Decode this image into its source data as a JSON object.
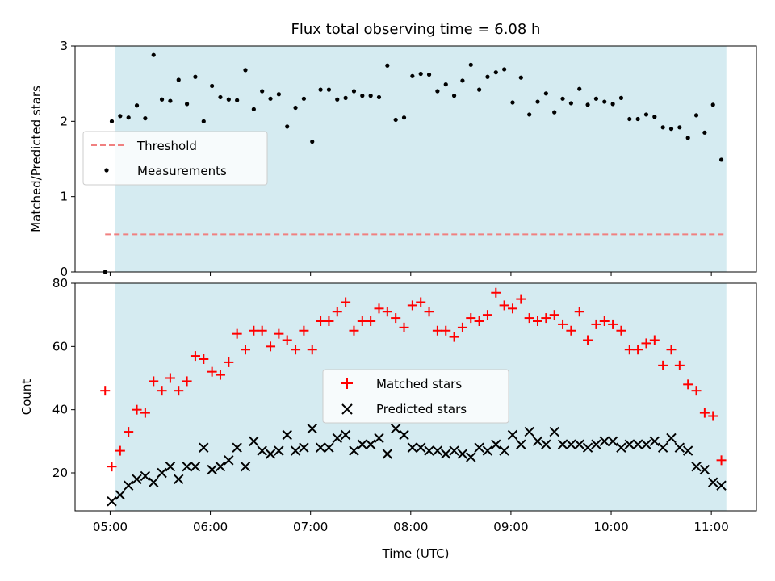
{
  "chart_data": [
    {
      "type": "scatter",
      "title": "Flux total observing time = 6.08 h",
      "ylabel": "Matched/Predicted stars",
      "xlabel": "",
      "ylim": [
        0,
        3
      ],
      "yticks": [
        "0",
        "1",
        "2",
        "3"
      ],
      "xlim_hours": [
        4.65,
        11.45
      ],
      "shaded_region_hours": [
        5.05,
        11.15
      ],
      "shaded_color": "#d5ebf1",
      "legend_position": "center-left",
      "threshold": {
        "name": "Threshold",
        "value": 0.5,
        "x_hours": [
          4.95,
          11.15
        ],
        "color": "#f08080"
      },
      "series": [
        {
          "name": "Measurements",
          "color": "#000000",
          "x": [
            "04:57",
            "05:01",
            "05:06",
            "05:11",
            "05:16",
            "05:21",
            "05:26",
            "05:31",
            "05:36",
            "05:41",
            "05:46",
            "05:51",
            "05:56",
            "06:01",
            "06:06",
            "06:11",
            "06:16",
            "06:21",
            "06:26",
            "06:31",
            "06:36",
            "06:41",
            "06:46",
            "06:51",
            "06:56",
            "07:01",
            "07:06",
            "07:11",
            "07:16",
            "07:21",
            "07:26",
            "07:31",
            "07:36",
            "07:41",
            "07:46",
            "07:51",
            "07:56",
            "08:01",
            "08:06",
            "08:11",
            "08:16",
            "08:21",
            "08:26",
            "08:31",
            "08:36",
            "08:41",
            "08:46",
            "08:51",
            "08:56",
            "09:01",
            "09:06",
            "09:11",
            "09:16",
            "09:21",
            "09:26",
            "09:31",
            "09:36",
            "09:41",
            "09:46",
            "09:51",
            "09:56",
            "10:01",
            "10:06",
            "10:11",
            "10:16",
            "10:21",
            "10:26",
            "10:31",
            "10:36",
            "10:41",
            "10:46",
            "10:51",
            "10:56",
            "11:01",
            "11:06"
          ],
          "values": [
            0.0,
            2.0,
            2.07,
            2.05,
            2.21,
            2.04,
            2.88,
            2.29,
            2.27,
            2.55,
            2.23,
            2.59,
            2.0,
            2.47,
            2.32,
            2.29,
            2.28,
            2.68,
            2.16,
            2.4,
            2.3,
            2.36,
            1.93,
            2.18,
            2.3,
            1.73,
            2.42,
            2.42,
            2.29,
            2.31,
            2.4,
            2.34,
            2.34,
            2.32,
            2.74,
            2.02,
            2.05,
            2.6,
            2.63,
            2.62,
            2.4,
            2.49,
            2.34,
            2.54,
            2.75,
            2.42,
            2.59,
            2.65,
            2.69,
            2.25,
            2.58,
            2.09,
            2.26,
            2.37,
            2.12,
            2.3,
            2.24,
            2.43,
            2.22,
            2.3,
            2.26,
            2.23,
            2.31,
            2.03,
            2.03,
            2.09,
            2.06,
            1.92,
            1.9,
            1.92,
            1.78,
            2.08,
            1.85,
            2.22,
            1.49
          ]
        }
      ]
    },
    {
      "type": "scatter",
      "title": "",
      "ylabel": "Count",
      "xlabel": "Time (UTC)",
      "ylim": [
        8,
        80
      ],
      "yticks": [
        "20",
        "40",
        "60",
        "80"
      ],
      "xlim_hours": [
        4.65,
        11.45
      ],
      "xticks": [
        "05:00",
        "06:00",
        "07:00",
        "08:00",
        "09:00",
        "10:00",
        "11:00"
      ],
      "shaded_region_hours": [
        5.05,
        11.15
      ],
      "shaded_color": "#d5ebf1",
      "legend_position": "center",
      "series": [
        {
          "name": "Matched stars",
          "marker": "plus",
          "color": "#ff0000",
          "x": [
            "04:57",
            "05:01",
            "05:06",
            "05:11",
            "05:16",
            "05:21",
            "05:26",
            "05:31",
            "05:36",
            "05:41",
            "05:46",
            "05:51",
            "05:56",
            "06:01",
            "06:06",
            "06:11",
            "06:16",
            "06:21",
            "06:26",
            "06:31",
            "06:36",
            "06:41",
            "06:46",
            "06:51",
            "06:56",
            "07:01",
            "07:06",
            "07:11",
            "07:16",
            "07:21",
            "07:26",
            "07:31",
            "07:36",
            "07:41",
            "07:46",
            "07:51",
            "07:56",
            "08:01",
            "08:06",
            "08:11",
            "08:16",
            "08:21",
            "08:26",
            "08:31",
            "08:36",
            "08:41",
            "08:46",
            "08:51",
            "08:56",
            "09:01",
            "09:06",
            "09:11",
            "09:16",
            "09:21",
            "09:26",
            "09:31",
            "09:36",
            "09:41",
            "09:46",
            "09:51",
            "09:56",
            "10:01",
            "10:06",
            "10:11",
            "10:16",
            "10:21",
            "10:26",
            "10:31",
            "10:36",
            "10:41",
            "10:46",
            "10:51",
            "10:56",
            "11:01",
            "11:06"
          ],
          "values": [
            46,
            22,
            27,
            33,
            40,
            39,
            49,
            46,
            50,
            46,
            49,
            57,
            56,
            52,
            51,
            55,
            64,
            59,
            65,
            65,
            60,
            64,
            62,
            59,
            65,
            59,
            68,
            68,
            71,
            74,
            65,
            68,
            68,
            72,
            71,
            69,
            66,
            73,
            74,
            71,
            65,
            65,
            63,
            66,
            69,
            68,
            70,
            77,
            73,
            72,
            75,
            69,
            68,
            69,
            70,
            67,
            65,
            71,
            62,
            67,
            68,
            67,
            65,
            59,
            59,
            61,
            62,
            54,
            59,
            54,
            48,
            46,
            39,
            38,
            24
          ]
        },
        {
          "name": "Predicted stars",
          "marker": "x",
          "color": "#000000",
          "x": [
            "05:01",
            "05:06",
            "05:11",
            "05:16",
            "05:21",
            "05:26",
            "05:31",
            "05:36",
            "05:41",
            "05:46",
            "05:51",
            "05:56",
            "06:01",
            "06:06",
            "06:11",
            "06:16",
            "06:21",
            "06:26",
            "06:31",
            "06:36",
            "06:41",
            "06:46",
            "06:51",
            "06:56",
            "07:01",
            "07:06",
            "07:11",
            "07:16",
            "07:21",
            "07:26",
            "07:31",
            "07:36",
            "07:41",
            "07:46",
            "07:51",
            "07:56",
            "08:01",
            "08:06",
            "08:11",
            "08:16",
            "08:21",
            "08:26",
            "08:31",
            "08:36",
            "08:41",
            "08:46",
            "08:51",
            "08:56",
            "09:01",
            "09:06",
            "09:11",
            "09:16",
            "09:21",
            "09:26",
            "09:31",
            "09:36",
            "09:41",
            "09:46",
            "09:51",
            "09:56",
            "10:01",
            "10:06",
            "10:11",
            "10:16",
            "10:21",
            "10:26",
            "10:31",
            "10:36",
            "10:41",
            "10:46",
            "10:51",
            "10:56",
            "11:01",
            "11:06"
          ],
          "values": [
            11,
            13,
            16,
            18,
            19,
            17,
            20,
            22,
            18,
            22,
            22,
            28,
            21,
            22,
            24,
            28,
            22,
            30,
            27,
            26,
            27,
            32,
            27,
            28,
            34,
            28,
            28,
            31,
            32,
            27,
            29,
            29,
            31,
            26,
            34,
            32,
            28,
            28,
            27,
            27,
            26,
            27,
            26,
            25,
            28,
            27,
            29,
            27,
            32,
            29,
            33,
            30,
            29,
            33,
            29,
            29,
            29,
            28,
            29,
            30,
            30,
            28,
            29,
            29,
            29,
            30,
            28,
            31,
            28,
            27,
            22,
            21,
            17,
            16
          ]
        }
      ]
    }
  ]
}
